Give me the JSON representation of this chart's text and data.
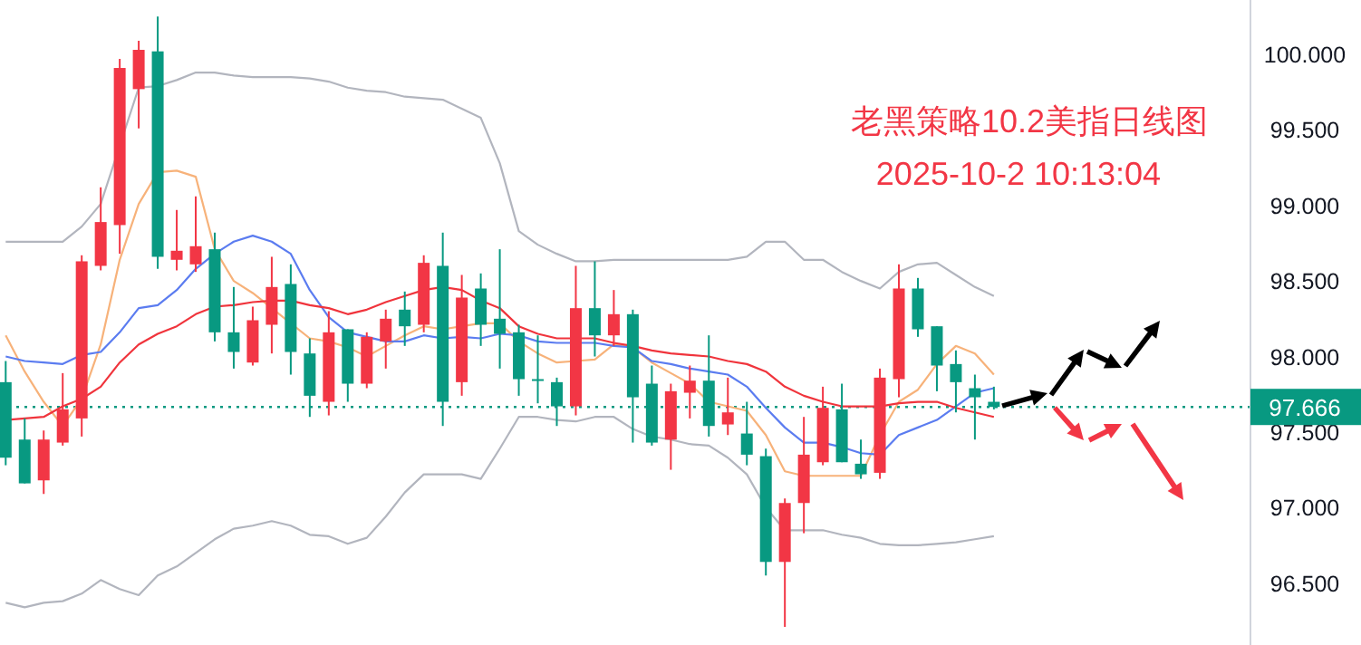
{
  "chart_data": {
    "type": "candlestick",
    "title": "老黑策略10.2美指日线图",
    "subtitle": "2025-10-2 10:13:04",
    "categories": [
      null,
      null,
      null,
      null,
      null,
      null,
      null,
      null,
      null,
      null,
      null,
      null,
      null,
      null,
      null,
      null,
      null,
      null,
      null,
      null,
      null,
      null,
      null,
      null,
      null,
      null,
      null,
      null,
      null,
      null,
      null,
      null,
      null,
      null,
      null,
      null,
      null,
      null,
      null,
      null,
      null,
      null,
      null,
      null,
      null,
      null,
      null,
      null,
      null,
      null,
      null,
      null,
      null
    ],
    "ohlc": [
      [
        97.83,
        97.97,
        97.28,
        97.33
      ],
      [
        97.45,
        97.59,
        97.16,
        97.16
      ],
      [
        97.18,
        97.51,
        97.09,
        97.45
      ],
      [
        97.43,
        97.89,
        97.41,
        97.65
      ],
      [
        97.59,
        98.67,
        97.47,
        98.63
      ],
      [
        98.6,
        99.12,
        98.57,
        98.89
      ],
      [
        98.87,
        99.97,
        98.68,
        99.91
      ],
      [
        99.77,
        100.09,
        99.51,
        100.03
      ],
      [
        100.02,
        100.25,
        98.58,
        98.66
      ],
      [
        98.64,
        98.97,
        98.57,
        98.7
      ],
      [
        98.61,
        99.06,
        98.56,
        98.73
      ],
      [
        98.71,
        98.82,
        98.1,
        98.16
      ],
      [
        98.16,
        98.46,
        97.92,
        98.03
      ],
      [
        97.96,
        98.33,
        97.94,
        98.24
      ],
      [
        98.21,
        98.66,
        98.02,
        98.46
      ],
      [
        98.48,
        98.61,
        97.88,
        98.03
      ],
      [
        98.02,
        98.12,
        97.6,
        97.74
      ],
      [
        97.7,
        98.3,
        97.61,
        98.16
      ],
      [
        98.18,
        98.18,
        97.7,
        97.82
      ],
      [
        97.82,
        98.16,
        97.79,
        98.13
      ],
      [
        98.1,
        98.31,
        97.92,
        98.25
      ],
      [
        98.31,
        98.43,
        98.07,
        98.2
      ],
      [
        98.21,
        98.67,
        98.16,
        98.62
      ],
      [
        98.6,
        98.82,
        97.54,
        97.7
      ],
      [
        97.83,
        98.54,
        97.74,
        98.39
      ],
      [
        98.45,
        98.55,
        98.07,
        98.21
      ],
      [
        98.25,
        98.71,
        97.92,
        98.15
      ],
      [
        98.16,
        98.21,
        97.74,
        97.85
      ],
      [
        97.85,
        98.14,
        97.69,
        97.84
      ],
      [
        97.83,
        97.86,
        97.54,
        97.67
      ],
      [
        97.67,
        98.6,
        97.61,
        98.32
      ],
      [
        98.32,
        98.63,
        98.0,
        98.14
      ],
      [
        98.14,
        98.44,
        98.07,
        98.28
      ],
      [
        98.28,
        98.31,
        97.43,
        97.73
      ],
      [
        97.82,
        97.94,
        97.41,
        97.43
      ],
      [
        97.45,
        97.82,
        97.25,
        97.77
      ],
      [
        97.76,
        97.94,
        97.59,
        97.84
      ],
      [
        97.84,
        98.14,
        97.47,
        97.54
      ],
      [
        97.55,
        97.86,
        97.48,
        97.63
      ],
      [
        97.49,
        97.7,
        97.28,
        97.35
      ],
      [
        97.34,
        97.39,
        96.55,
        96.64
      ],
      [
        96.64,
        97.06,
        96.21,
        97.03
      ],
      [
        97.03,
        97.6,
        96.83,
        97.35
      ],
      [
        97.3,
        97.8,
        97.28,
        97.66
      ],
      [
        97.65,
        97.82,
        97.3,
        97.3
      ],
      [
        97.29,
        97.45,
        97.19,
        97.22
      ],
      [
        97.23,
        97.92,
        97.19,
        97.86
      ],
      [
        97.85,
        98.61,
        97.73,
        98.45
      ],
      [
        98.45,
        98.52,
        98.13,
        98.18
      ],
      [
        98.2,
        98.2,
        97.77,
        97.94
      ],
      [
        97.95,
        98.04,
        97.63,
        97.83
      ],
      [
        97.79,
        97.88,
        97.45,
        97.73
      ],
      [
        97.7,
        97.8,
        97.65,
        97.666
      ]
    ],
    "series": [
      {
        "type": "line",
        "color": "#b2b5be",
        "values": [
          98.76,
          98.76,
          98.76,
          98.76,
          98.86,
          99.01,
          null,
          99.78,
          99.79,
          99.83,
          99.88,
          99.88,
          99.86,
          99.85,
          99.85,
          99.85,
          99.84,
          99.82,
          99.78,
          99.76,
          99.75,
          99.72,
          99.71,
          99.7,
          99.64,
          99.58,
          99.28,
          98.83,
          98.74,
          98.68,
          98.63,
          98.63,
          98.64,
          98.64,
          98.64,
          98.64,
          98.64,
          98.64,
          98.64,
          98.66,
          98.76,
          98.76,
          98.64,
          98.64,
          98.56,
          98.5,
          98.45,
          98.56,
          98.61,
          98.62,
          98.54,
          98.46,
          98.4
        ]
      },
      {
        "type": "line",
        "color": "#b2b5be",
        "values": [
          96.37,
          96.34,
          96.37,
          96.38,
          96.43,
          96.52,
          96.46,
          96.42,
          96.55,
          96.61,
          96.7,
          96.79,
          96.86,
          96.88,
          96.91,
          96.88,
          96.82,
          96.81,
          96.76,
          96.8,
          96.94,
          97.1,
          97.22,
          97.22,
          97.22,
          97.19,
          97.39,
          97.6,
          97.6,
          97.58,
          97.57,
          97.6,
          97.6,
          97.52,
          97.47,
          97.45,
          97.42,
          97.41,
          97.33,
          97.22,
          97.0,
          96.85,
          96.85,
          96.85,
          96.82,
          96.8,
          96.76,
          96.75,
          96.75,
          96.76,
          96.77,
          96.79,
          96.81
        ]
      },
      {
        "type": "line",
        "color": "#f7b27a",
        "values": [
          98.14,
          97.9,
          97.7,
          97.54,
          97.72,
          98.08,
          98.64,
          99.01,
          99.22,
          99.23,
          99.19,
          98.71,
          98.5,
          98.42,
          98.32,
          98.22,
          98.12,
          98.1,
          98.06,
          98.0,
          98.07,
          98.14,
          98.2,
          98.18,
          98.2,
          98.22,
          98.22,
          98.1,
          98.02,
          97.96,
          97.97,
          97.98,
          98.08,
          98.06,
          97.96,
          97.89,
          97.82,
          97.7,
          97.67,
          97.64,
          97.48,
          97.24,
          97.21,
          97.21,
          97.21,
          97.21,
          97.48,
          97.7,
          97.78,
          97.95,
          98.07,
          98.02,
          97.88
        ]
      },
      {
        "type": "line",
        "color": "#5b7cf0",
        "values": [
          98.0,
          97.97,
          97.96,
          97.95,
          98.01,
          98.03,
          98.16,
          98.32,
          98.34,
          98.44,
          98.58,
          98.68,
          98.76,
          98.8,
          98.76,
          98.68,
          98.44,
          98.26,
          98.16,
          98.13,
          98.1,
          98.1,
          98.14,
          98.12,
          98.13,
          98.12,
          98.15,
          98.14,
          98.1,
          98.09,
          98.09,
          98.09,
          98.07,
          98.06,
          97.97,
          97.95,
          97.92,
          97.9,
          97.88,
          97.8,
          97.66,
          97.53,
          97.43,
          97.43,
          97.4,
          97.36,
          97.35,
          97.48,
          97.53,
          97.58,
          97.67,
          97.76,
          97.79
        ]
      },
      {
        "type": "line",
        "color": "#f0343c",
        "values": [
          97.58,
          97.59,
          97.6,
          97.67,
          97.72,
          97.8,
          97.96,
          98.08,
          98.15,
          98.2,
          98.28,
          98.33,
          98.34,
          98.36,
          98.37,
          98.37,
          98.34,
          98.32,
          98.28,
          98.31,
          98.36,
          98.4,
          98.44,
          98.46,
          98.44,
          98.37,
          98.32,
          98.2,
          98.15,
          98.12,
          98.12,
          98.12,
          98.09,
          98.07,
          98.04,
          98.02,
          98.01,
          98.0,
          97.97,
          97.95,
          97.9,
          97.8,
          97.74,
          97.7,
          97.67,
          97.67,
          97.67,
          97.69,
          97.7,
          97.7,
          97.66,
          97.63,
          97.6
        ]
      }
    ],
    "ylim": [
      96.09,
      100.36
    ],
    "yticks": [
      {
        "value": 96.5,
        "label": "96.500"
      },
      {
        "value": 97,
        "label": "97.000"
      },
      {
        "value": 97.5,
        "label": "97.500"
      },
      {
        "value": 98,
        "label": "98.000"
      },
      {
        "value": 98.5,
        "label": "98.500"
      },
      {
        "value": 99,
        "label": "99.000"
      },
      {
        "value": 99.5,
        "label": "99.500"
      },
      {
        "value": 100,
        "label": "100.000"
      }
    ],
    "ref_lines": [
      {
        "axis": "y",
        "value": 97.666,
        "label": "97.666",
        "color": "#089981",
        "line_style": "dotted"
      }
    ],
    "tick_labels": "y"
  }
}
